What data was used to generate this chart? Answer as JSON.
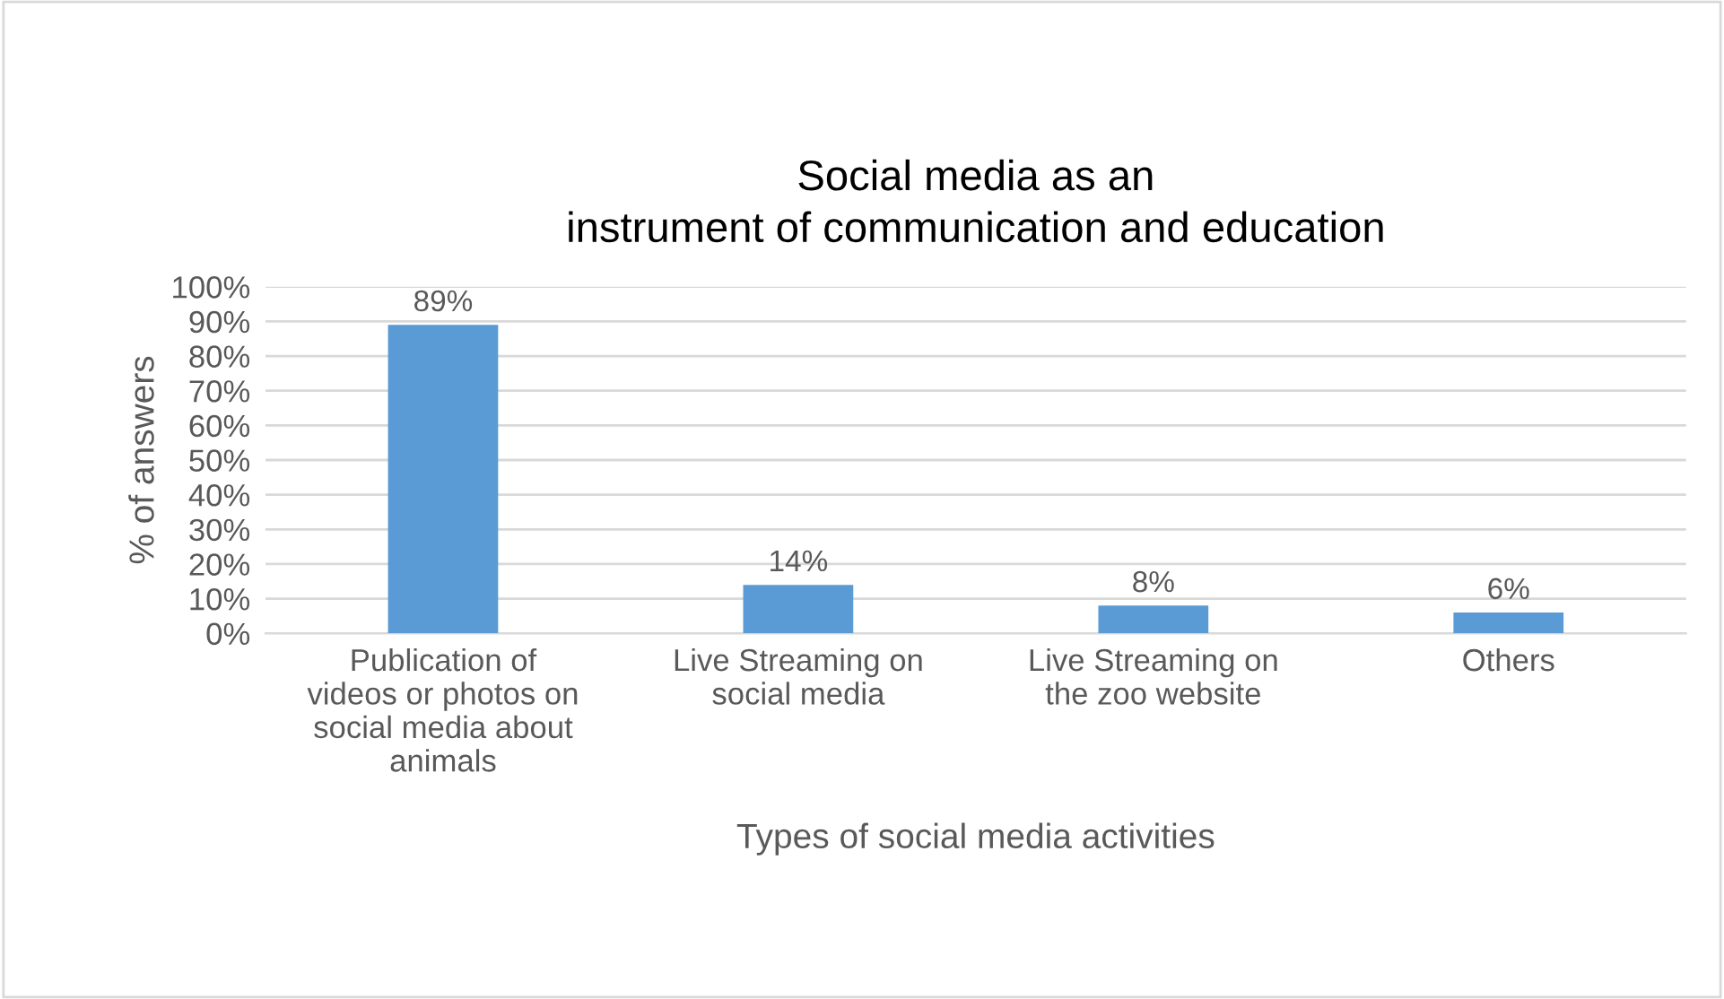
{
  "chart_data": {
    "type": "bar",
    "title": "Social media as an\ninstrument of communication and education",
    "xlabel": "Types of social media activities",
    "ylabel": "% of answers",
    "categories": [
      "Publication of\nvideos or photos on\nsocial media about\nanimals",
      "Live Streaming on\nsocial media",
      "Live Streaming on\nthe zoo website",
      "Others"
    ],
    "values": [
      89,
      14,
      8,
      6
    ],
    "color": "#5b9bd5",
    "value_labels": [
      "89%",
      "14%",
      "8%",
      "6%"
    ],
    "ylim": [
      0,
      100
    ],
    "yticks": [
      {
        "value": 0,
        "label": "0%"
      },
      {
        "value": 10,
        "label": "10%"
      },
      {
        "value": 20,
        "label": "20%"
      },
      {
        "value": 30,
        "label": "30%"
      },
      {
        "value": 40,
        "label": "40%"
      },
      {
        "value": 50,
        "label": "50%"
      },
      {
        "value": 60,
        "label": "60%"
      },
      {
        "value": 70,
        "label": "70%"
      },
      {
        "value": 80,
        "label": "80%"
      },
      {
        "value": 90,
        "label": "90%"
      },
      {
        "value": 100,
        "label": "100%"
      }
    ],
    "grid": "y",
    "legend": false
  }
}
